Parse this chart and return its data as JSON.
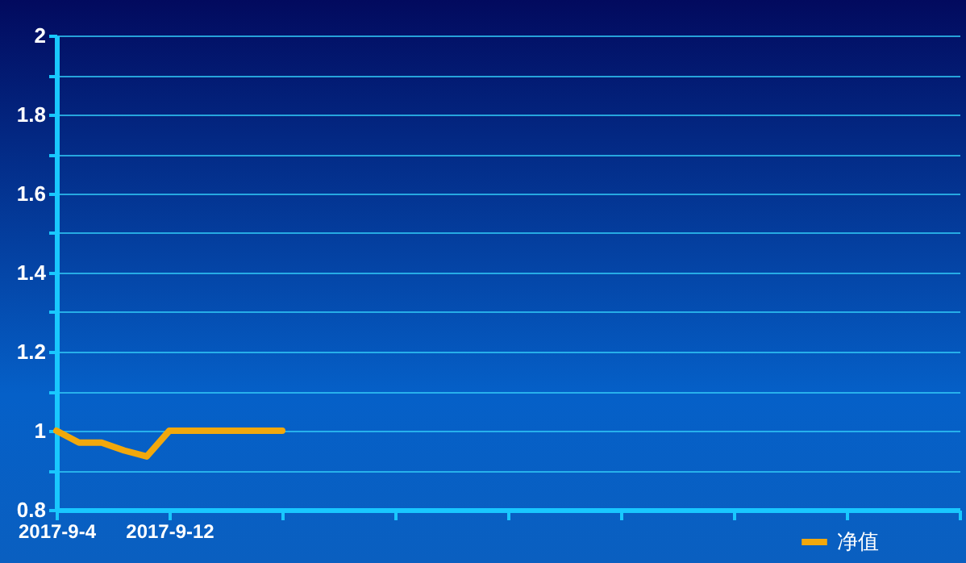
{
  "chart_data": {
    "type": "line",
    "categories": [
      "2017-9-4",
      null,
      null,
      null,
      null,
      "2017-9-12",
      null,
      null,
      null,
      null,
      null,
      null,
      null,
      null,
      null,
      null,
      null,
      null,
      null,
      null,
      null,
      null,
      null,
      null,
      null,
      null,
      null,
      null,
      null,
      null,
      null,
      null,
      null,
      null,
      null,
      null,
      null,
      null,
      null,
      null,
      null
    ],
    "series": [
      {
        "name": "净值",
        "color": "#f2a80c",
        "values": [
          1,
          0.97,
          0.97,
          0.95,
          0.935,
          1,
          1,
          1,
          1,
          1,
          1,
          null,
          null,
          null,
          null,
          null,
          null,
          null,
          null,
          null,
          null,
          null,
          null,
          null,
          null,
          null,
          null,
          null,
          null,
          null,
          null,
          null,
          null,
          null,
          null,
          null,
          null,
          null,
          null,
          null,
          null
        ]
      }
    ],
    "ylim": [
      0.8,
      2
    ],
    "yticks": [
      0.8,
      {
        "value": 0.9,
        "label": null
      },
      1,
      {
        "value": 1.1,
        "label": null
      },
      1.2,
      {
        "value": 1.3,
        "label": null
      },
      1.4,
      {
        "value": 1.5,
        "label": null
      },
      1.6,
      {
        "value": 1.7,
        "label": null
      },
      1.8,
      {
        "value": 1.9,
        "label": null
      },
      2
    ],
    "grid": "y",
    "legend": "bottom right",
    "marker": "none",
    "line_style": "solid"
  }
}
